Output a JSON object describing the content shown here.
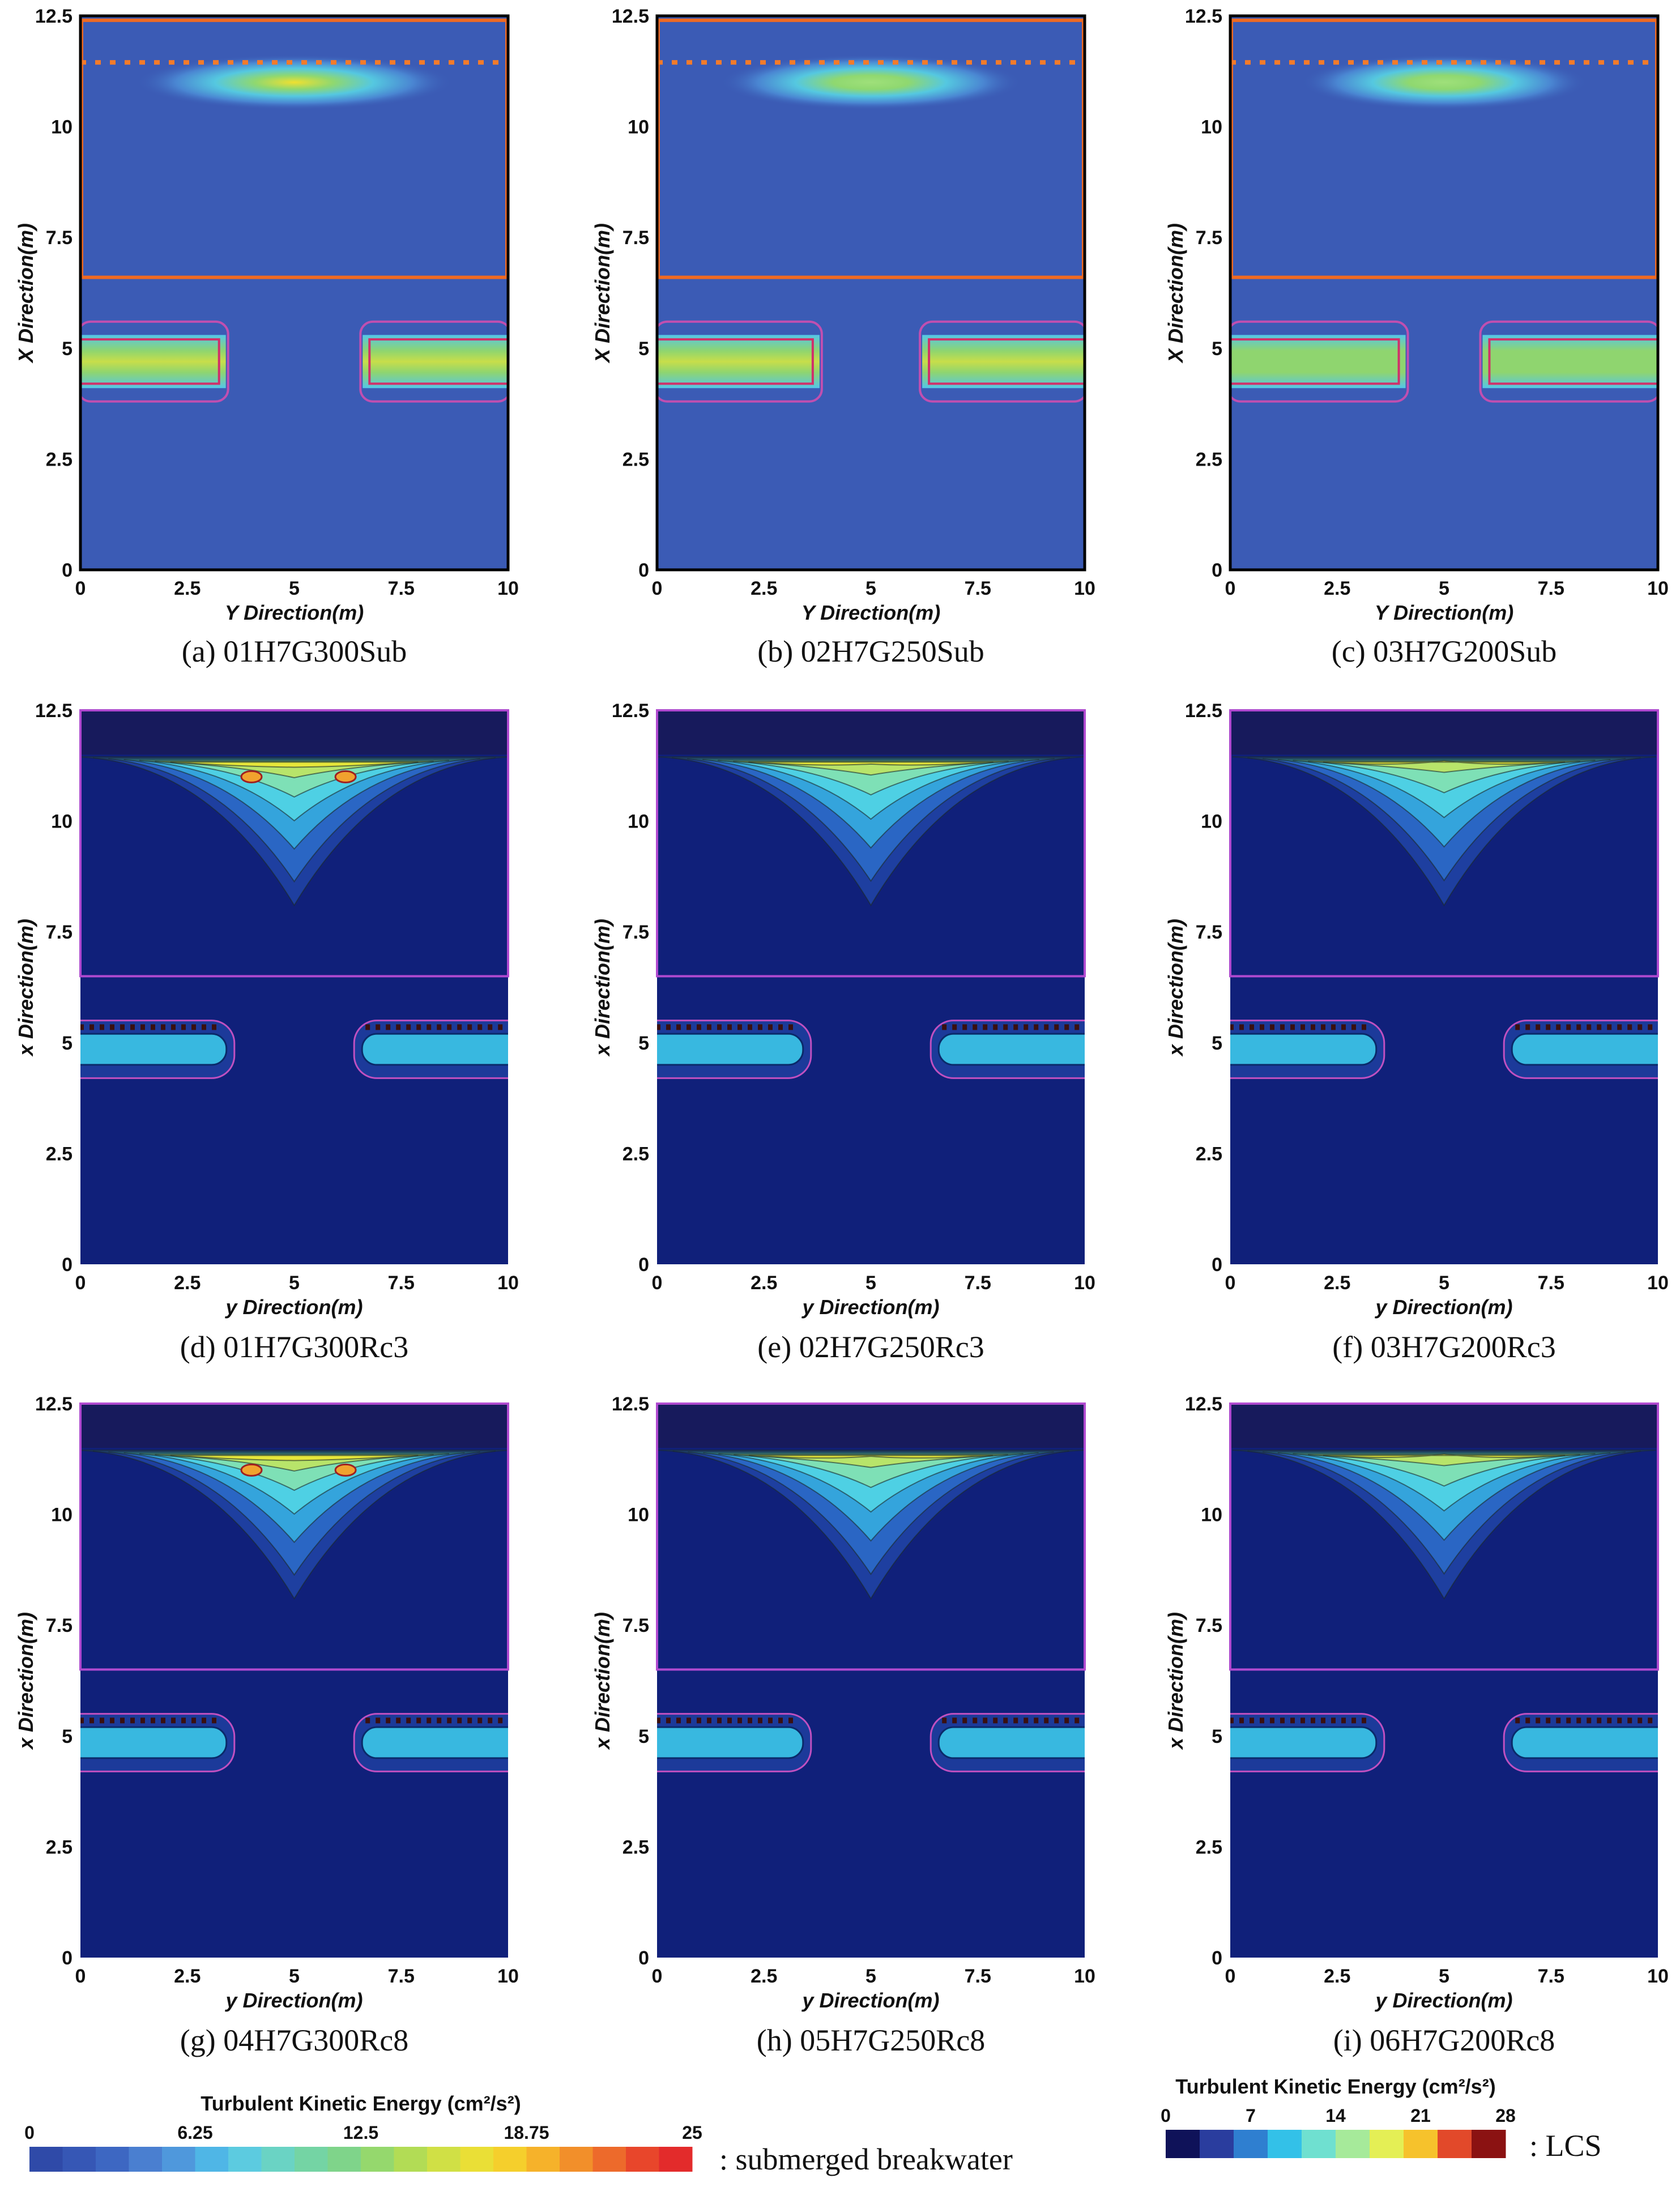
{
  "panels": [
    {
      "id": "a",
      "caption": "(a) 01H7G300Sub",
      "style": "sub",
      "intensity": 0.75,
      "xlabel": "Y Direction(m)",
      "ylabel": "X Direction(m)",
      "xticks": [
        "0",
        "2.5",
        "5",
        "7.5",
        "10"
      ],
      "yticks": [
        "0",
        "2.5",
        "5",
        "7.5",
        "10",
        "12.5"
      ]
    },
    {
      "id": "b",
      "caption": "(b) 02H7G250Sub",
      "style": "sub",
      "intensity": 0.6,
      "xlabel": "Y Direction(m)",
      "ylabel": "X Direction(m)",
      "xticks": [
        "0",
        "2.5",
        "5",
        "7.5",
        "10"
      ],
      "yticks": [
        "0",
        "2.5",
        "5",
        "7.5",
        "10",
        "12.5"
      ]
    },
    {
      "id": "c",
      "caption": "(c) 03H7G200Sub",
      "style": "sub",
      "intensity": 0.45,
      "xlabel": "Y Direction(m)",
      "ylabel": "X Direction(m)",
      "xticks": [
        "0",
        "2.5",
        "5",
        "7.5",
        "10"
      ],
      "yticks": [
        "0",
        "2.5",
        "5",
        "7.5",
        "10",
        "12.5"
      ]
    },
    {
      "id": "d",
      "caption": "(d) 01H7G300Rc3",
      "style": "lcs",
      "intensity": 0.82,
      "xlabel": "y Direction(m)",
      "ylabel": "x Direction(m)",
      "xticks": [
        "0",
        "2.5",
        "5",
        "7.5",
        "10"
      ],
      "yticks": [
        "0",
        "2.5",
        "5",
        "7.5",
        "10",
        "12.5"
      ]
    },
    {
      "id": "e",
      "caption": "(e) 02H7G250Rc3",
      "style": "lcs",
      "intensity": 0.76,
      "xlabel": "y Direction(m)",
      "ylabel": "x Direction(m)",
      "xticks": [
        "0",
        "2.5",
        "5",
        "7.5",
        "10"
      ],
      "yticks": [
        "0",
        "2.5",
        "5",
        "7.5",
        "10",
        "12.5"
      ]
    },
    {
      "id": "f",
      "caption": "(f) 03H7G200Rc3",
      "style": "lcs",
      "intensity": 0.7,
      "xlabel": "y Direction(m)",
      "ylabel": "x Direction(m)",
      "xticks": [
        "0",
        "2.5",
        "5",
        "7.5",
        "10"
      ],
      "yticks": [
        "0",
        "2.5",
        "5",
        "7.5",
        "10",
        "12.5"
      ]
    },
    {
      "id": "g",
      "caption": "(g) 04H7G300Rc8",
      "style": "lcs",
      "intensity": 0.82,
      "xlabel": "y Direction(m)",
      "ylabel": "x Direction(m)",
      "xticks": [
        "0",
        "2.5",
        "5",
        "7.5",
        "10"
      ],
      "yticks": [
        "0",
        "2.5",
        "5",
        "7.5",
        "10",
        "12.5"
      ]
    },
    {
      "id": "h",
      "caption": "(h) 05H7G250Rc8",
      "style": "lcs",
      "intensity": 0.74,
      "xlabel": "y Direction(m)",
      "ylabel": "x Direction(m)",
      "xticks": [
        "0",
        "2.5",
        "5",
        "7.5",
        "10"
      ],
      "yticks": [
        "0",
        "2.5",
        "5",
        "7.5",
        "10",
        "12.5"
      ]
    },
    {
      "id": "i",
      "caption": "(i) 06H7G200Rc8",
      "style": "lcs",
      "intensity": 0.7,
      "xlabel": "y Direction(m)",
      "ylabel": "x Direction(m)",
      "xticks": [
        "0",
        "2.5",
        "5",
        "7.5",
        "10"
      ],
      "yticks": [
        "0",
        "2.5",
        "5",
        "7.5",
        "10",
        "12.5"
      ]
    }
  ],
  "legend_left": {
    "title": "Turbulent Kinetic Energy (cm²/s²)",
    "ticks": [
      "0",
      "6.25",
      "12.5",
      "18.75",
      "25"
    ],
    "note": ": submerged breakwater",
    "colors": [
      "#2f4aa8",
      "#3657b5",
      "#3d67c2",
      "#4a7fd0",
      "#4f98dc",
      "#4fb6e6",
      "#5ccbe0",
      "#6ad3c4",
      "#74d4a4",
      "#7fd48a",
      "#95d86d",
      "#b2dc55",
      "#d0e045",
      "#eadf36",
      "#f5cf2c",
      "#f6b22a",
      "#f28f2a",
      "#ed6a2b",
      "#e8462b",
      "#e32b2b"
    ]
  },
  "legend_right": {
    "title": "Turbulent Kinetic Energy (cm²/s²)",
    "ticks": [
      "0",
      "7",
      "14",
      "21",
      "28"
    ],
    "note": ": LCS",
    "colors": [
      "#0f1259",
      "#2a3d9e",
      "#2f7fd0",
      "#33c1e8",
      "#6fe0d0",
      "#a6ea9a",
      "#e4ef55",
      "#f6c22c",
      "#e2492a",
      "#8b1212"
    ]
  },
  "chart_data": {
    "type": "heatmap",
    "description_values": "Turbulent kinetic energy fields (cm²/s²) over a 10 m × 12.5 m domain; peak energy near x≈11 m, y≈5 m; breakwater zones at x≈4–5.5 m",
    "x_range": [
      0,
      10
    ],
    "y_range": [
      0,
      12.5
    ],
    "peak_location": {
      "y": 5,
      "x": 11
    },
    "breakwater_x_range": [
      3.8,
      5.5
    ]
  }
}
